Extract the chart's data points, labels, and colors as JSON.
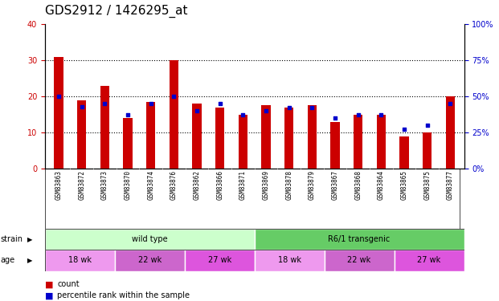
{
  "title": "GDS2912 / 1426295_at",
  "samples": [
    "GSM83863",
    "GSM83872",
    "GSM83873",
    "GSM83870",
    "GSM83874",
    "GSM83876",
    "GSM83862",
    "GSM83866",
    "GSM83871",
    "GSM83869",
    "GSM83878",
    "GSM83879",
    "GSM83867",
    "GSM83868",
    "GSM83864",
    "GSM83865",
    "GSM83875",
    "GSM83877"
  ],
  "count": [
    31,
    19,
    23,
    14,
    18.5,
    30,
    18,
    17,
    15,
    17.5,
    17,
    17.5,
    13,
    15,
    15,
    9,
    10,
    20
  ],
  "percentile": [
    50,
    43,
    45,
    37,
    45,
    50,
    40,
    45,
    37,
    40,
    42,
    42,
    35,
    37,
    37,
    27,
    30,
    45
  ],
  "left_ylim": [
    0,
    40
  ],
  "right_ylim": [
    0,
    100
  ],
  "left_yticks": [
    0,
    10,
    20,
    30,
    40
  ],
  "right_yticks": [
    0,
    25,
    50,
    75,
    100
  ],
  "right_yticklabels": [
    "0%",
    "25%",
    "50%",
    "75%",
    "100%"
  ],
  "bar_color": "#cc0000",
  "dot_color": "#0000cc",
  "strain_groups": [
    {
      "label": "wild type",
      "start": 0,
      "end": 9,
      "color": "#ccffcc"
    },
    {
      "label": "R6/1 transgenic",
      "start": 9,
      "end": 18,
      "color": "#66cc66"
    }
  ],
  "age_groups": [
    {
      "label": "18 wk",
      "start": 0,
      "end": 3,
      "color": "#ee99ee"
    },
    {
      "label": "22 wk",
      "start": 3,
      "end": 6,
      "color": "#cc66cc"
    },
    {
      "label": "27 wk",
      "start": 6,
      "end": 9,
      "color": "#dd55dd"
    },
    {
      "label": "18 wk",
      "start": 9,
      "end": 12,
      "color": "#ee99ee"
    },
    {
      "label": "22 wk",
      "start": 12,
      "end": 15,
      "color": "#cc66cc"
    },
    {
      "label": "27 wk",
      "start": 15,
      "end": 18,
      "color": "#dd55dd"
    }
  ],
  "left_axis_color": "#cc0000",
  "right_axis_color": "#0000cc",
  "title_fontsize": 11,
  "tick_fontsize": 7,
  "bar_width": 0.4,
  "grid_yticks": [
    10,
    20,
    30
  ]
}
